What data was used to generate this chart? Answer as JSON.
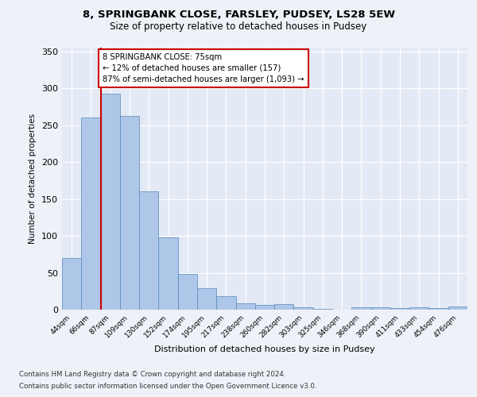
{
  "title1": "8, SPRINGBANK CLOSE, FARSLEY, PUDSEY, LS28 5EW",
  "title2": "Size of property relative to detached houses in Pudsey",
  "xlabel": "Distribution of detached houses by size in Pudsey",
  "ylabel": "Number of detached properties",
  "categories": [
    "44sqm",
    "66sqm",
    "87sqm",
    "109sqm",
    "130sqm",
    "152sqm",
    "174sqm",
    "195sqm",
    "217sqm",
    "238sqm",
    "260sqm",
    "282sqm",
    "303sqm",
    "325sqm",
    "346sqm",
    "368sqm",
    "390sqm",
    "411sqm",
    "433sqm",
    "454sqm",
    "476sqm"
  ],
  "values": [
    70,
    260,
    293,
    263,
    160,
    98,
    48,
    29,
    18,
    9,
    6,
    8,
    3,
    1,
    0,
    3,
    3,
    2,
    3,
    2,
    4
  ],
  "bar_color": "#aec6e8",
  "bar_edge_color": "#5588bb",
  "bar_edge_width": 0.5,
  "vline_x": 1.5,
  "vline_color": "#cc0000",
  "annotation_text": "8 SPRINGBANK CLOSE: 75sqm\n← 12% of detached houses are smaller (157)\n87% of semi-detached houses are larger (1,093) →",
  "annotation_box_color": "#ffffff",
  "annotation_box_edge": "#cc0000",
  "ylim": [
    0,
    355
  ],
  "yticks": [
    0,
    50,
    100,
    150,
    200,
    250,
    300,
    350
  ],
  "footer1": "Contains HM Land Registry data © Crown copyright and database right 2024.",
  "footer2": "Contains public sector information licensed under the Open Government Licence v3.0.",
  "bg_color": "#eef2f8",
  "plot_bg_color": "#e4eaf5"
}
